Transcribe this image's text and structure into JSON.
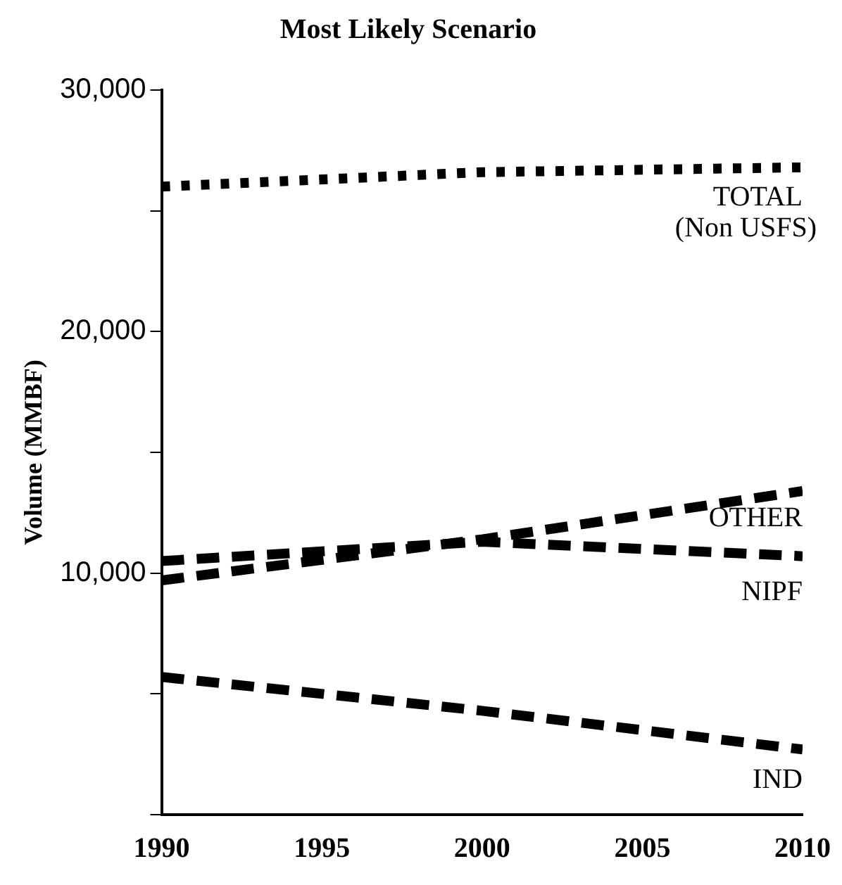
{
  "chart_data": {
    "type": "line",
    "title": "Most Likely Scenario",
    "ylabel": "Volume (MMBF)",
    "x": [
      1990,
      2000,
      2010
    ],
    "series": [
      {
        "name": "TOTAL (Non USFS)",
        "color": "#000000",
        "line_style": "dotted",
        "values": [
          26000,
          26600,
          26800
        ]
      },
      {
        "name": "OTHER",
        "color": "#000000",
        "line_style": "dashed",
        "values": [
          9700,
          11400,
          13400
        ]
      },
      {
        "name": "NIPF",
        "color": "#000000",
        "line_style": "dashed",
        "values": [
          10500,
          11300,
          10700
        ]
      },
      {
        "name": "IND",
        "color": "#000000",
        "line_style": "dashed",
        "values": [
          5700,
          4300,
          2700
        ]
      }
    ],
    "xlim": [
      1990,
      2010
    ],
    "xticks": [
      1990,
      1995,
      2000,
      2005,
      2010
    ],
    "ylim": [
      0,
      30000
    ],
    "yticks": [
      {
        "value": 0,
        "label": null
      },
      {
        "value": 5000,
        "label": null
      },
      {
        "value": 10000,
        "label": "10,000"
      },
      {
        "value": 15000,
        "label": null
      },
      {
        "value": 20000,
        "label": "20,000"
      },
      {
        "value": 25000,
        "label": null
      },
      {
        "value": 30000,
        "label": "30,000"
      }
    ],
    "grid": false,
    "legend": false,
    "marker": "none"
  }
}
